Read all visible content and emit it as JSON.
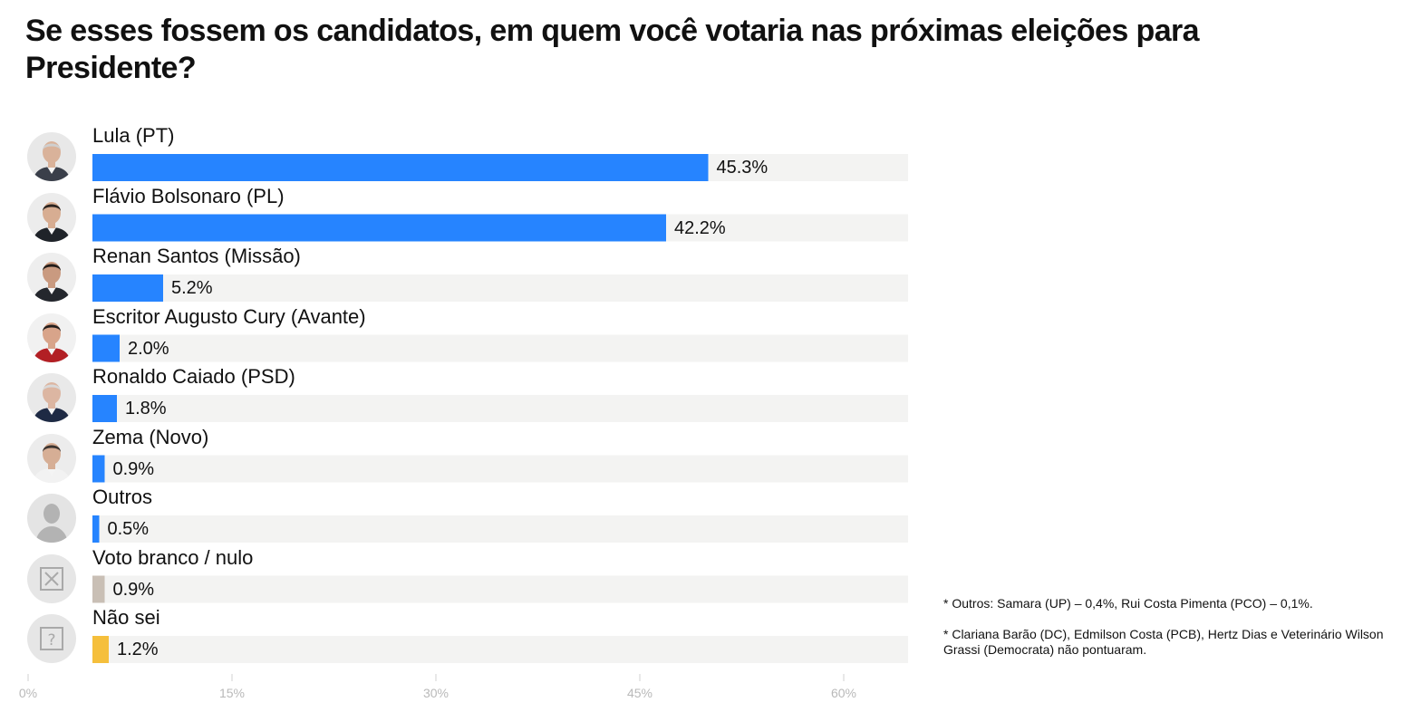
{
  "title": "Se esses fossem os candidatos, em quem você votaria nas próximas eleições para Presidente?",
  "chart_data": {
    "type": "bar",
    "orientation": "horizontal",
    "categories": [
      "Lula (PT)",
      "Flávio Bolsonaro (PL)",
      "Renan Santos (Missão)",
      "Escritor Augusto Cury (Avante)",
      "Ronaldo Caiado (PSD)",
      "Zema (Novo)",
      "Outros",
      "Voto branco / nulo",
      "Não sei"
    ],
    "values": [
      45.3,
      42.2,
      5.2,
      2.0,
      1.8,
      0.9,
      0.5,
      0.9,
      1.2
    ],
    "value_labels": [
      "45.3%",
      "42.2%",
      "5.2%",
      "2.0%",
      "1.8%",
      "0.9%",
      "0.5%",
      "0.9%",
      "1.2%"
    ],
    "bar_colors": [
      "#2684ff",
      "#2684ff",
      "#2684ff",
      "#2684ff",
      "#2684ff",
      "#2684ff",
      "#2684ff",
      "#c9bfb5",
      "#f5bf3c"
    ],
    "track_color": "#f3f3f2",
    "xlim": [
      0,
      65
    ],
    "xticks": [
      0,
      15,
      30,
      45,
      60
    ],
    "xtick_labels": [
      "0%",
      "15%",
      "30%",
      "45%",
      "60%"
    ],
    "grid": false,
    "xlabel": "",
    "ylabel": ""
  },
  "avatars": [
    {
      "icon": "lula-photo-icon",
      "kind": "photo",
      "skin": "#d9b29a",
      "hair": "#cfcfcf",
      "suit": "#3a3f4a",
      "bg": "#e8e8e8"
    },
    {
      "icon": "flavio-bolsonaro-photo-icon",
      "kind": "photo",
      "skin": "#d7ad92",
      "hair": "#2b2420",
      "suit": "#1f2329",
      "bg": "#ececec"
    },
    {
      "icon": "renan-santos-photo-icon",
      "kind": "photo",
      "skin": "#c99a80",
      "hair": "#221c19",
      "suit": "#24272d",
      "bg": "#eeeeee"
    },
    {
      "icon": "augusto-cury-photo-icon",
      "kind": "photo",
      "skin": "#d8a48a",
      "hair": "#231e1c",
      "suit": "#b21f24",
      "bg": "#f1f1f1"
    },
    {
      "icon": "ronaldo-caiado-photo-icon",
      "kind": "photo",
      "skin": "#dcb6a2",
      "hair": "#d9d9d9",
      "suit": "#1e2a44",
      "bg": "#e9e9e9"
    },
    {
      "icon": "zema-photo-icon",
      "kind": "photo",
      "skin": "#d6ae95",
      "hair": "#3b3430",
      "suit": "#f2f2f2",
      "bg": "#ececec"
    },
    {
      "icon": "person-silhouette-icon",
      "kind": "silhouette",
      "bg": "#e4e4e4",
      "fg": "#b3b3b3"
    },
    {
      "icon": "x-box-icon",
      "kind": "xbox",
      "bg": "#e6e6e6",
      "fg": "#a9a9a9"
    },
    {
      "icon": "question-box-icon",
      "kind": "qbox",
      "bg": "#e6e6e6",
      "fg": "#a9a9a9"
    }
  ],
  "notes": [
    "* Outros: Samara (UP) – 0,4%, Rui Costa Pimenta (PCO) – 0,1%.",
    "* Clariana Barão (DC), Edmilson Costa (PCB), Hertz Dias e Veterinário Wilson Grassi (Democrata) não pontuaram."
  ]
}
